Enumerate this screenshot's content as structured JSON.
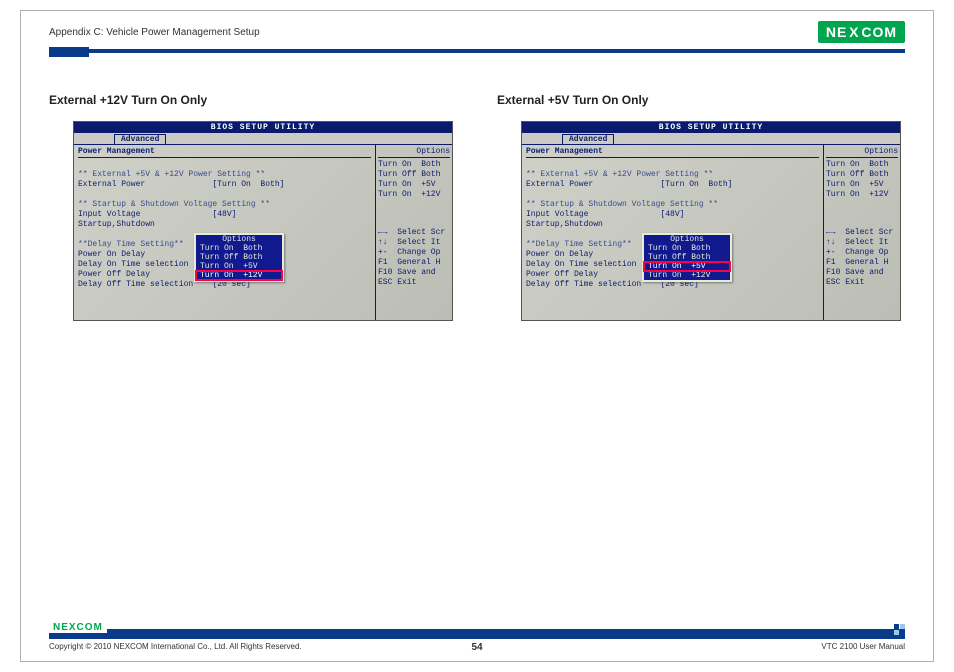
{
  "header": {
    "appendix_title": "Appendix C: Vehicle Power Management Setup",
    "logo_text_1": "NE",
    "logo_text_x": "X",
    "logo_text_2": "COM"
  },
  "columns": [
    {
      "title": "External +12V Turn On Only",
      "selected_index": 3
    },
    {
      "title": "External +5V Turn On Only",
      "selected_index": 2
    }
  ],
  "bios": {
    "title": "BIOS SETUP UTILITY",
    "tab": "Advanced",
    "section": "Power Management",
    "right_header": "Options",
    "rows": {
      "heading1": "** External +5V & +12V Power Setting **",
      "ext_power_label": "External Power",
      "ext_power_value": "[Turn On  Both]",
      "heading2": "** Startup & Shutdown Voltage Setting **",
      "input_voltage_label": "Input Voltage",
      "input_voltage_value": "[48V]",
      "startup_shutdown": "Startup,Shutdown",
      "heading3": "**Delay Time Setting**",
      "power_on_delay": "Power On Delay",
      "delay_on_time": "Delay On Time selection",
      "power_off_delay": "Power Off Delay",
      "delay_off_time": "Delay Off Time selection",
      "delay_off_value": "[20 sec]"
    },
    "right_options": [
      "Turn On  Both",
      "Turn Off Both",
      "Turn On  +5V",
      "Turn On  +12V"
    ],
    "popup": {
      "title": "Options",
      "items": [
        "Turn On  Both",
        "Turn Off Both",
        "Turn On  +5V",
        "Turn On  +12V"
      ]
    },
    "help": [
      {
        "key": "←→",
        "text": "Select Scr"
      },
      {
        "key": "↑↓",
        "text": "Select It"
      },
      {
        "key": "+-",
        "text": "Change Op"
      },
      {
        "key": "F1",
        "text": "General H"
      },
      {
        "key": "F10",
        "text": "Save and"
      },
      {
        "key": "ESC",
        "text": "Exit"
      }
    ]
  },
  "footer": {
    "copyright": "Copyright © 2010 NEXCOM International Co., Ltd. All Rights Reserved.",
    "page": "54",
    "doc": "VTC 2100 User Manual",
    "logo": "NEXCOM"
  },
  "colors": {
    "brand_green": "#00a64f",
    "brand_blue": "#0a3a8a",
    "bios_blue": "#101a8e",
    "bios_bg": "#c9cbc4",
    "highlight_red": "#ff0044"
  }
}
